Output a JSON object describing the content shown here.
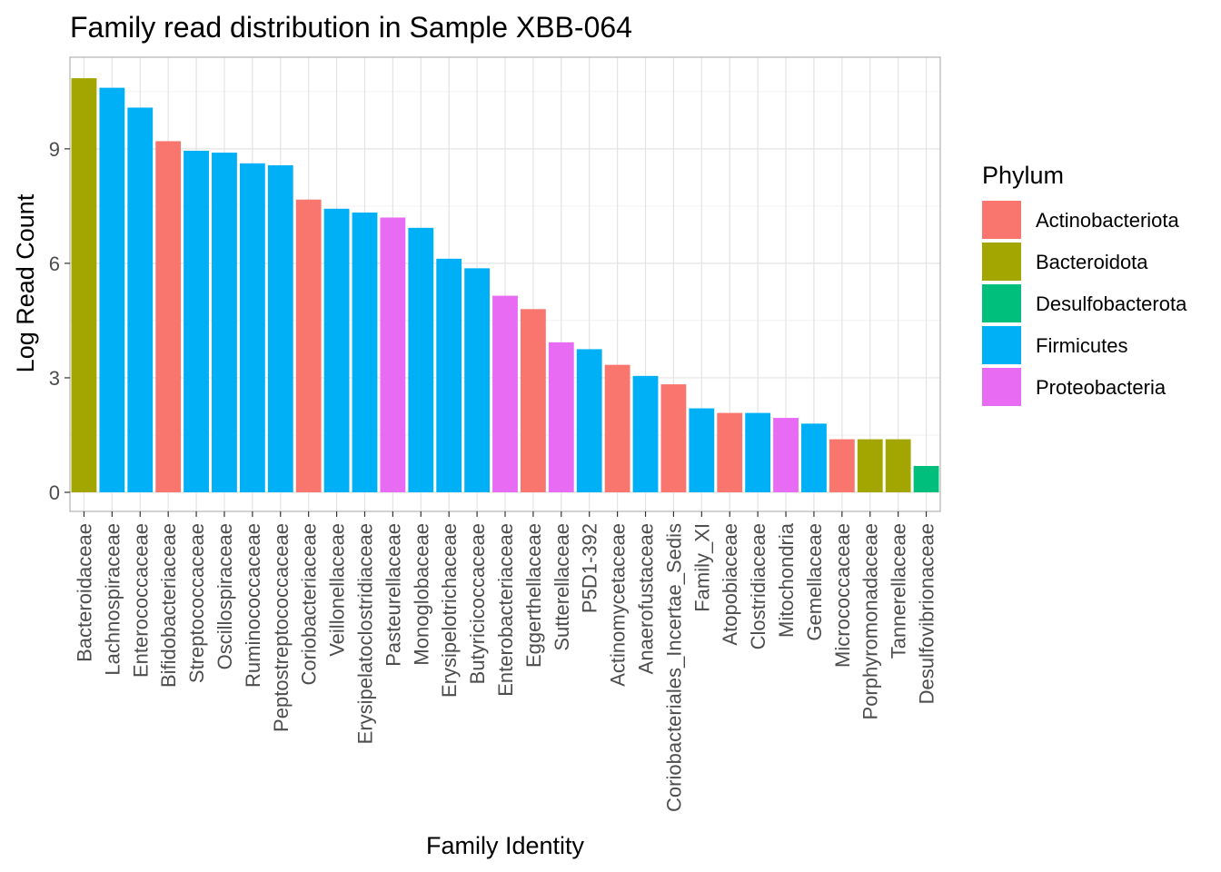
{
  "chart_data": {
    "type": "bar",
    "title": "Family read distribution in Sample XBB-064",
    "xlabel": "Family Identity",
    "ylabel": "Log Read Count",
    "ylim": [
      -0.5,
      11.4
    ],
    "yticks": [
      0,
      3,
      6,
      9
    ],
    "grid": true,
    "legend_placement": "right",
    "legend": {
      "title": "Phylum",
      "entries": [
        {
          "name": "Actinobacteriota",
          "color": "#F8766D"
        },
        {
          "name": "Bacteroidota",
          "color": "#A3A500"
        },
        {
          "name": "Desulfobacterota",
          "color": "#00BF7D"
        },
        {
          "name": "Firmicutes",
          "color": "#00B0F6"
        },
        {
          "name": "Proteobacteria",
          "color": "#E76BF3"
        }
      ]
    },
    "categories": [
      "Bacteroidaceae",
      "Lachnospiraceae",
      "Enterococcaceae",
      "Bifidobacteriaceae",
      "Streptococcaceae",
      "Oscillospiraceae",
      "Ruminococcaceae",
      "Peptostreptococcaceae",
      "Coriobacteriaceae",
      "Veillonellaceae",
      "Erysipelatoclostridiaceae",
      "Pasteurellaceae",
      "Monoglobaceae",
      "Erysipelotrichaceae",
      "Butyricicoccaceae",
      "Enterobacteriaceae",
      "Eggerthellaceae",
      "Sutterellaceae",
      "P5D1-392",
      "Actinomycetaceae",
      "Anaerofustaceae",
      "Coriobacteriales_Incertae_Sedis",
      "Family_XI",
      "Atopobiaceae",
      "Clostridiaceae",
      "Mitochondria",
      "Gemellaceae",
      "Micrococcaceae",
      "Porphyromonadaceae",
      "Tannerellaceae",
      "Desulfovibrionaceae"
    ],
    "values": [
      10.85,
      10.6,
      10.08,
      9.2,
      8.95,
      8.9,
      8.62,
      8.57,
      7.67,
      7.43,
      7.33,
      7.2,
      6.93,
      6.12,
      5.87,
      5.15,
      4.8,
      3.93,
      3.75,
      3.34,
      3.05,
      2.83,
      2.2,
      2.08,
      2.08,
      1.95,
      1.8,
      1.39,
      1.39,
      1.39,
      0.69
    ],
    "phylum": [
      "Bacteroidota",
      "Firmicutes",
      "Firmicutes",
      "Actinobacteriota",
      "Firmicutes",
      "Firmicutes",
      "Firmicutes",
      "Firmicutes",
      "Actinobacteriota",
      "Firmicutes",
      "Firmicutes",
      "Proteobacteria",
      "Firmicutes",
      "Firmicutes",
      "Firmicutes",
      "Proteobacteria",
      "Actinobacteriota",
      "Proteobacteria",
      "Firmicutes",
      "Actinobacteriota",
      "Firmicutes",
      "Actinobacteriota",
      "Firmicutes",
      "Actinobacteriota",
      "Firmicutes",
      "Proteobacteria",
      "Firmicutes",
      "Actinobacteriota",
      "Bacteroidota",
      "Bacteroidota",
      "Desulfobacterota"
    ]
  }
}
